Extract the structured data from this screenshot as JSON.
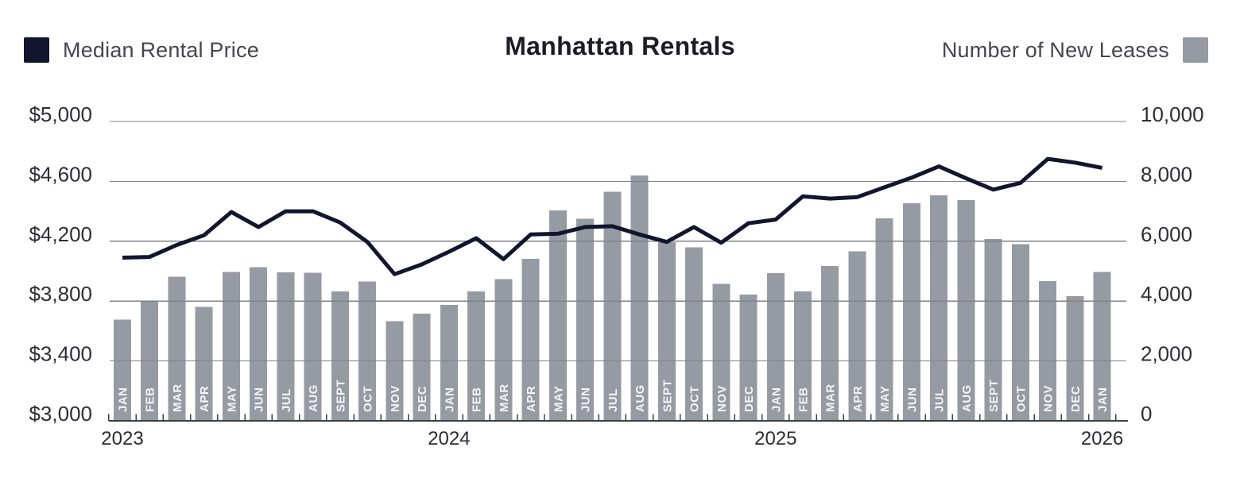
{
  "header": {
    "title": "Manhattan Rentals",
    "legend_left": "Median Rental Price",
    "legend_right": "Number of New Leases"
  },
  "colors": {
    "line": "#12152e",
    "bar": "#969aa2",
    "grid": "#818289",
    "axis": "#3f4046",
    "axis_label": "#2e2e36",
    "year_label": "#2b2b33",
    "month_label": "#f5f5f7",
    "title": "#1c1c23",
    "legend_text": "#46464e",
    "background": "#ffffff"
  },
  "chart_data": {
    "type": "combo",
    "title": "Manhattan Rentals",
    "grid": true,
    "legend_position": "top",
    "months": [
      "JAN",
      "FEB",
      "MAR",
      "APR",
      "MAY",
      "JUN",
      "JUL",
      "AUG",
      "SEPT",
      "OCT",
      "NOV",
      "DEC",
      "JAN",
      "FEB",
      "MAR",
      "APR",
      "MAY",
      "JUN",
      "JUL",
      "AUG",
      "SEPT",
      "OCT",
      "NOV",
      "DEC",
      "JAN",
      "FEB",
      "MAR",
      "APR",
      "MAY",
      "JUN",
      "JUL",
      "AUG",
      "SEPT",
      "OCT",
      "NOV",
      "DEC",
      "JAN"
    ],
    "year_labels": [
      {
        "label": "2023",
        "month_index": 0
      },
      {
        "label": "2024",
        "month_index": 12
      },
      {
        "label": "2025",
        "month_index": 24
      },
      {
        "label": "2026",
        "month_index": 36
      }
    ],
    "series": [
      {
        "name": "Median Rental Price",
        "type": "line",
        "axis": "left",
        "values": [
          4090,
          4095,
          4175,
          4240,
          4395,
          4295,
          4400,
          4400,
          4325,
          4195,
          3980,
          4045,
          4130,
          4220,
          4080,
          4245,
          4250,
          4295,
          4300,
          4245,
          4195,
          4295,
          4190,
          4320,
          4345,
          4500,
          4485,
          4495,
          4560,
          4625,
          4700,
          4620,
          4545,
          4590,
          4750,
          4725,
          4690
        ]
      },
      {
        "name": "Number of New Leases",
        "type": "bar",
        "axis": "right",
        "values": [
          3380,
          4000,
          4820,
          3800,
          4970,
          5130,
          4960,
          4950,
          4330,
          4660,
          3330,
          3580,
          3870,
          4320,
          4730,
          5410,
          7030,
          6750,
          7650,
          8200,
          5970,
          5790,
          4580,
          4220,
          4930,
          4320,
          5170,
          5660,
          6770,
          7270,
          7530,
          7380,
          6070,
          5900,
          4670,
          4170,
          4970
        ]
      }
    ],
    "left_axis": {
      "min": 3000,
      "max": 5000,
      "tick_values": [
        5000,
        4600,
        4200,
        3800,
        3400,
        3000
      ],
      "tick_labels": [
        "$5,000",
        "$4,600",
        "$4,200",
        "$3,800",
        "$3,400",
        "$3,000"
      ]
    },
    "right_axis": {
      "min": 0,
      "max": 10000,
      "tick_values": [
        10000,
        8000,
        6000,
        4000,
        2000,
        0
      ],
      "tick_labels": [
        "10,000",
        "8,000",
        "6,000",
        "4,000",
        "2,000",
        "0"
      ]
    }
  }
}
